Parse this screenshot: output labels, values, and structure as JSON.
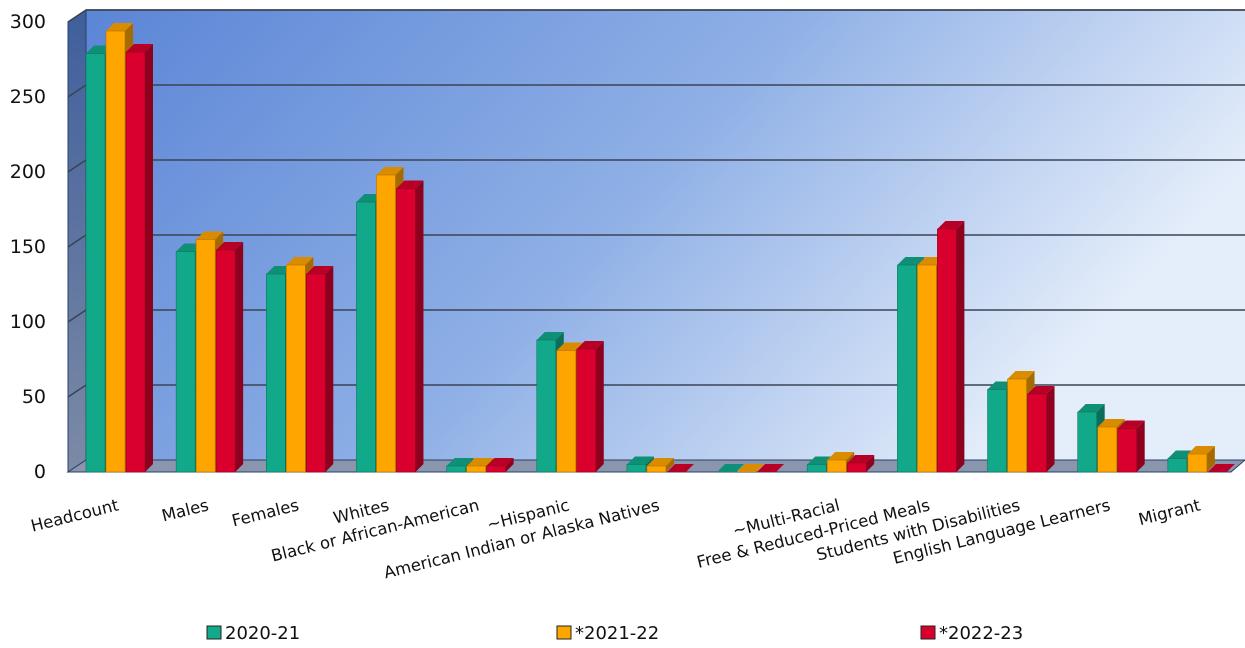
{
  "chart_data": {
    "type": "bar",
    "title": "",
    "xlabel": "",
    "ylabel": "",
    "ylim": [
      0,
      300
    ],
    "yticks": [
      0,
      50,
      100,
      150,
      200,
      250,
      300
    ],
    "grid": true,
    "legend_position": "bottom",
    "categories": [
      "Headcount",
      "Males",
      "Females",
      "Whites",
      "Black or African-American",
      "~Hispanic",
      "American Indian or Alaska Natives",
      "",
      "~Multi-Racial",
      "Free & Reduced-Priced Meals",
      "Students with Disabilities",
      "English Language Learners",
      "Migrant"
    ],
    "series": [
      {
        "name": "2020-21",
        "color": "#12a88a",
        "values": [
          279,
          147,
          132,
          180,
          4,
          88,
          5,
          0,
          5,
          138,
          55,
          40,
          9
        ]
      },
      {
        "name": "*2021-22",
        "color": "#ffa500",
        "values": [
          294,
          155,
          138,
          198,
          4,
          81,
          4,
          0,
          8,
          138,
          62,
          30,
          12
        ]
      },
      {
        "name": "*2022-23",
        "color": "#d9002e",
        "values": [
          280,
          148,
          132,
          189,
          4,
          82,
          0,
          0,
          6,
          162,
          52,
          29,
          0
        ]
      }
    ]
  }
}
